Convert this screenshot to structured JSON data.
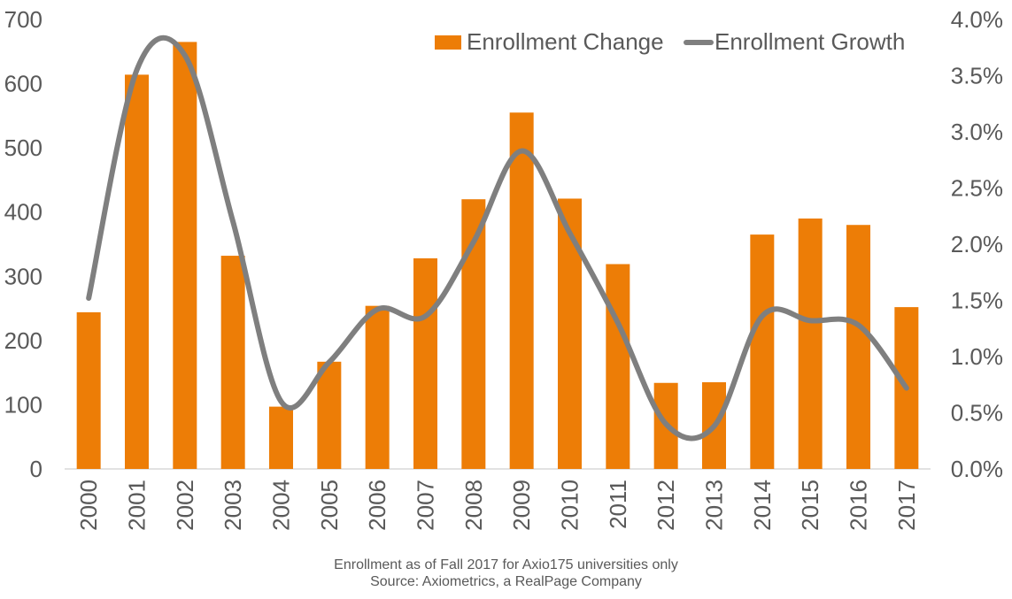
{
  "chart_data": {
    "type": "bar",
    "categories": [
      "2000",
      "2001",
      "2002",
      "2003",
      "2004",
      "2005",
      "2006",
      "2007",
      "2008",
      "2009",
      "2010",
      "2011",
      "2012",
      "2013",
      "2014",
      "2015",
      "2016",
      "2017"
    ],
    "series": [
      {
        "name": "Enrollment Change",
        "type": "bar",
        "axis": "left",
        "color": "#ED7D06",
        "values": [
          244,
          614,
          665,
          332,
          97,
          167,
          254,
          328,
          420,
          555,
          421,
          319,
          134,
          135,
          365,
          390,
          380,
          252
        ]
      },
      {
        "name": "Enrollment Growth",
        "type": "line",
        "smooth": true,
        "axis": "right",
        "color": "#7F7F7F",
        "values": [
          1.52,
          3.55,
          3.68,
          2.2,
          0.6,
          0.95,
          1.42,
          1.36,
          2.02,
          2.83,
          2.1,
          1.3,
          0.4,
          0.38,
          1.36,
          1.32,
          1.28,
          0.72
        ]
      }
    ],
    "yleft": {
      "min": 0,
      "max": 700,
      "ticks": [
        "0",
        "100",
        "200",
        "300",
        "400",
        "500",
        "600",
        "700"
      ]
    },
    "yright": {
      "min": 0,
      "max": 4.0,
      "ticks": [
        "0.0%",
        "0.5%",
        "1.0%",
        "1.5%",
        "2.0%",
        "2.5%",
        "3.0%",
        "3.5%",
        "4.0%"
      ]
    },
    "grid": false,
    "legend": {
      "position": "top-right"
    }
  },
  "notes": {
    "line1": "Enrollment as of Fall 2017 for Axio175 universities only",
    "line2": "Source: Axiometrics, a RealPage Company"
  }
}
